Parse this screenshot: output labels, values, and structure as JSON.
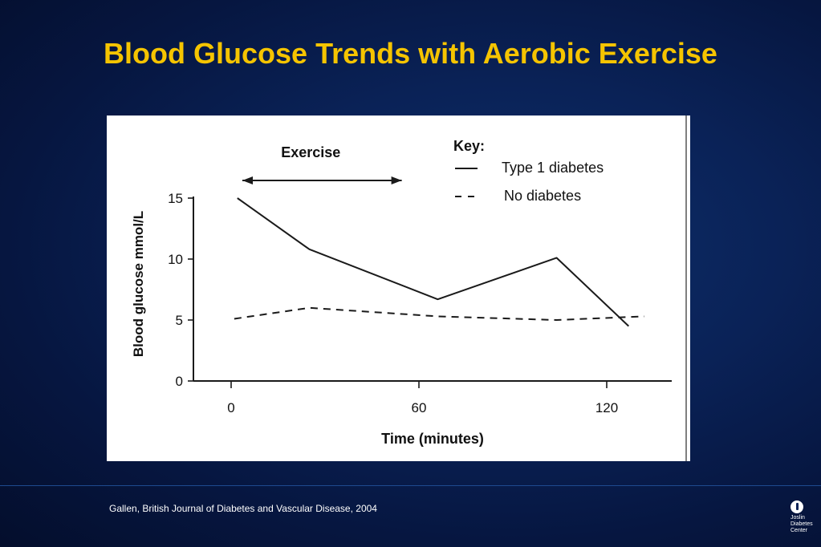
{
  "slide": {
    "title": "Blood Glucose Trends with Aerobic Exercise",
    "citation": "Gallen, British Journal of Diabetes and Vascular Disease, 2004",
    "logo_text": "Joslin\nDiabetes\nCenter"
  },
  "colors": {
    "title": "#f5c400",
    "background": "#0a2257",
    "line": "#1a1a1a"
  },
  "chart_data": {
    "type": "line",
    "title": "",
    "xlabel": "Time (minutes)",
    "ylabel": "Blood glucose mmol/L",
    "x_ticks": [
      0,
      60,
      120
    ],
    "y_ticks": [
      0,
      5,
      10,
      15
    ],
    "xlim": [
      0,
      130
    ],
    "ylim": [
      0,
      15
    ],
    "annotation": {
      "label": "Exercise",
      "x_start": 0,
      "x_end": 54
    },
    "legend": {
      "title": "Key:",
      "position": "top-right"
    },
    "series": [
      {
        "name": "Type 1 diabetes",
        "style": "solid",
        "x": [
          2,
          25,
          66,
          104,
          127
        ],
        "y": [
          15,
          10.8,
          6.7,
          10.1,
          4.5
        ]
      },
      {
        "name": "No diabetes",
        "style": "dashed",
        "x": [
          1,
          25,
          66,
          104,
          132
        ],
        "y": [
          5.1,
          6.0,
          5.3,
          5.0,
          5.3
        ]
      }
    ]
  }
}
